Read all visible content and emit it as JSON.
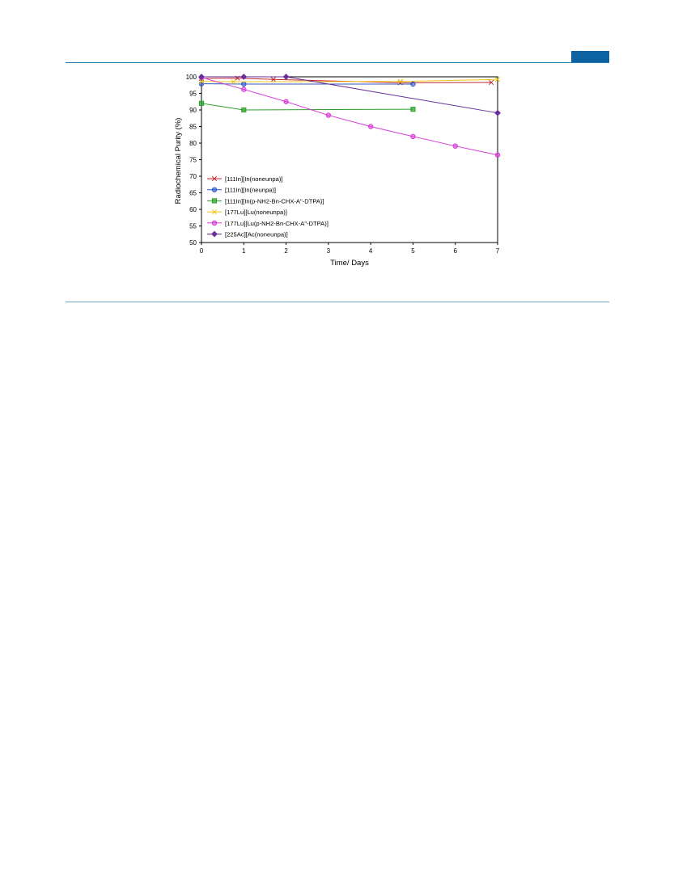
{
  "page": {
    "header_tab_color": "#0d62a1",
    "rule_color": "#2a7ab0"
  },
  "chart_data": {
    "type": "line",
    "title": "",
    "xlabel": "Time/ Days",
    "ylabel": "Radiochemical Purity (%)",
    "xlim": [
      0,
      7
    ],
    "ylim": [
      50,
      100
    ],
    "xticks": [
      0,
      1,
      2,
      3,
      4,
      5,
      6,
      7
    ],
    "yticks": [
      50,
      55,
      60,
      65,
      70,
      75,
      80,
      85,
      90,
      95,
      100
    ],
    "grid": false,
    "legend_position": "bottom-left",
    "series": [
      {
        "name": "[111In][In(noneunpa)]",
        "color": "#c0282d",
        "marker": "x",
        "x": [
          0,
          0.85,
          1.7,
          4.7,
          6.85
        ],
        "y": [
          99.5,
          99.6,
          99.2,
          98.2,
          98.3
        ]
      },
      {
        "name": "[111In][In(neunpa)]",
        "color": "#2b55c8",
        "marker": "circle",
        "x": [
          0,
          1,
          5
        ],
        "y": [
          97.9,
          97.8,
          97.8
        ]
      },
      {
        "name": "[111In][In(p-NH2-Bn-CHX-A\"-DTPA)]",
        "color": "#2ca02c",
        "marker": "square",
        "x": [
          0,
          1,
          5
        ],
        "y": [
          92,
          90,
          90.2
        ]
      },
      {
        "name": "[177Lu][Lu(noneunpa)]",
        "color": "#f0c419",
        "marker": "x",
        "x": [
          0,
          0.75,
          4.7,
          7
        ],
        "y": [
          98.6,
          98.5,
          98.6,
          99.2
        ]
      },
      {
        "name": "[177Lu][Lu(p-NH2-Bn-CHX-A\"-DTPA)]",
        "color": "#d63ad6",
        "marker": "circle",
        "x": [
          0,
          1,
          2,
          3,
          4,
          5,
          6,
          7
        ],
        "y": [
          99.8,
          96.2,
          92.5,
          88.4,
          85,
          82,
          79.1,
          76.4
        ]
      },
      {
        "name": "[225Ac][Ac(noneunpa)]",
        "color": "#6a2f9a",
        "marker": "diamond",
        "x": [
          0,
          1,
          2,
          7
        ],
        "y": [
          100,
          100,
          100,
          89.1
        ]
      }
    ]
  }
}
